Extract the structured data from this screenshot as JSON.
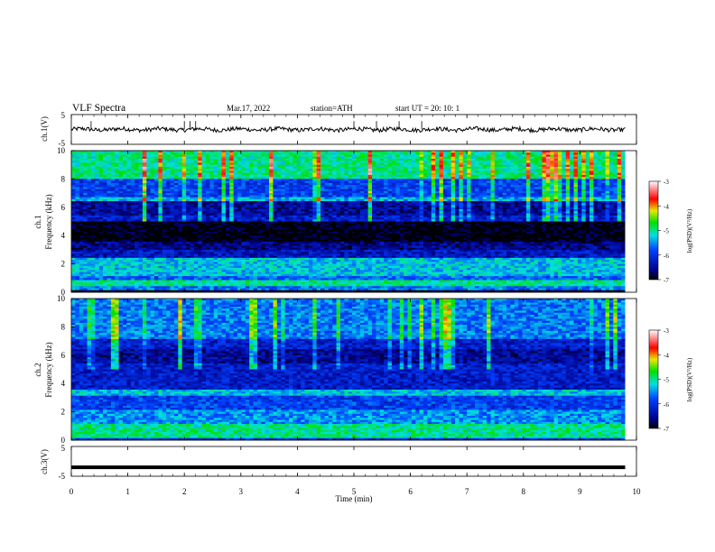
{
  "header": {
    "title": "VLF  Spectra",
    "date": "Mar.17, 2022",
    "station": "station=ATH",
    "start": "start  UT  =    20: 10: 1"
  },
  "chart_data": [
    {
      "type": "line",
      "name": "ch1-voltage",
      "ylabel": "ch.1(V)",
      "ylim": [
        -5,
        5
      ],
      "yticks": [
        "5",
        "-5"
      ],
      "xlim": [
        0,
        10
      ],
      "color": "#000000",
      "trace": {
        "mean": 0.0,
        "jitter": 0.7,
        "spikes": [
          0.35,
          2.0,
          2.1,
          2.2,
          5.0,
          5.4,
          5.8,
          6.2
        ]
      }
    },
    {
      "type": "heatmap",
      "name": "ch1-spectrogram",
      "ylabel": "ch.1\nFrequency (kHz)",
      "ylabel_lines": [
        "ch.1",
        "Frequency (kHz)"
      ],
      "ylim": [
        0,
        10
      ],
      "yticks": [
        "0",
        "2",
        "4",
        "6",
        "8",
        "10"
      ],
      "xlim": [
        0,
        9.8
      ],
      "colorbar": {
        "label": "log(PSD)(V²/Hz)",
        "ticks": [
          "-3",
          "-4",
          "-5",
          "-6",
          "-7"
        ],
        "range": [
          -7,
          -3
        ]
      },
      "bands": [
        {
          "f": [
            0.0,
            0.1
          ],
          "v": -7.0
        },
        {
          "f": [
            0.1,
            0.5
          ],
          "v": -5.6
        },
        {
          "f": [
            0.5,
            0.8
          ],
          "v": -5.0
        },
        {
          "f": [
            0.8,
            1.2
          ],
          "v": -5.7
        },
        {
          "f": [
            1.2,
            2.4
          ],
          "v": -5.3
        },
        {
          "f": [
            2.4,
            3.0
          ],
          "v": -6.3
        },
        {
          "f": [
            3.0,
            3.6
          ],
          "v": -6.6
        },
        {
          "f": [
            3.6,
            5.0
          ],
          "v": -7.0
        },
        {
          "f": [
            5.0,
            5.4
          ],
          "v": -6.2
        },
        {
          "f": [
            5.4,
            6.4
          ],
          "v": -6.5
        },
        {
          "f": [
            6.4,
            6.7
          ],
          "v": -5.4
        },
        {
          "f": [
            6.7,
            8.0
          ],
          "v": -5.9
        },
        {
          "f": [
            8.0,
            10.0
          ],
          "v": -5.0
        }
      ]
    },
    {
      "type": "heatmap",
      "name": "ch2-spectrogram",
      "ylabel": "ch.2\nFrequency (kHz)",
      "ylabel_lines": [
        "ch.2",
        "Frequency (kHz)"
      ],
      "ylim": [
        0,
        10
      ],
      "yticks": [
        "0",
        "2",
        "4",
        "6",
        "8",
        "10"
      ],
      "xlim": [
        0,
        9.8
      ],
      "colorbar": {
        "label": "log(PSD)(V²/Hz)",
        "ticks": [
          "-3",
          "-4",
          "-5",
          "-6",
          "-7"
        ],
        "range": [
          -7,
          -3
        ]
      },
      "bands": [
        {
          "f": [
            0.0,
            0.2
          ],
          "v": -6.0
        },
        {
          "f": [
            0.2,
            1.2
          ],
          "v": -5.0
        },
        {
          "f": [
            1.2,
            2.2
          ],
          "v": -5.5
        },
        {
          "f": [
            2.2,
            3.2
          ],
          "v": -5.9
        },
        {
          "f": [
            3.2,
            3.6
          ],
          "v": -5.3
        },
        {
          "f": [
            3.6,
            5.4
          ],
          "v": -6.2
        },
        {
          "f": [
            5.4,
            6.4
          ],
          "v": -6.5
        },
        {
          "f": [
            6.4,
            7.2
          ],
          "v": -6.2
        },
        {
          "f": [
            7.2,
            10.0
          ],
          "v": -5.6
        }
      ]
    },
    {
      "type": "line",
      "name": "ch3-voltage",
      "ylabel": "ch.3(V)",
      "ylim": [
        -5,
        5
      ],
      "yticks": [
        "5",
        "-5"
      ],
      "xlim": [
        0,
        10
      ],
      "color": "#000000",
      "level": -2.0,
      "x_end": 9.8
    }
  ],
  "xaxis": {
    "label": "Time  (min)",
    "ticks": [
      "0",
      "1",
      "2",
      "3",
      "4",
      "5",
      "6",
      "7",
      "8",
      "9",
      "10"
    ],
    "range": [
      0,
      10
    ]
  }
}
